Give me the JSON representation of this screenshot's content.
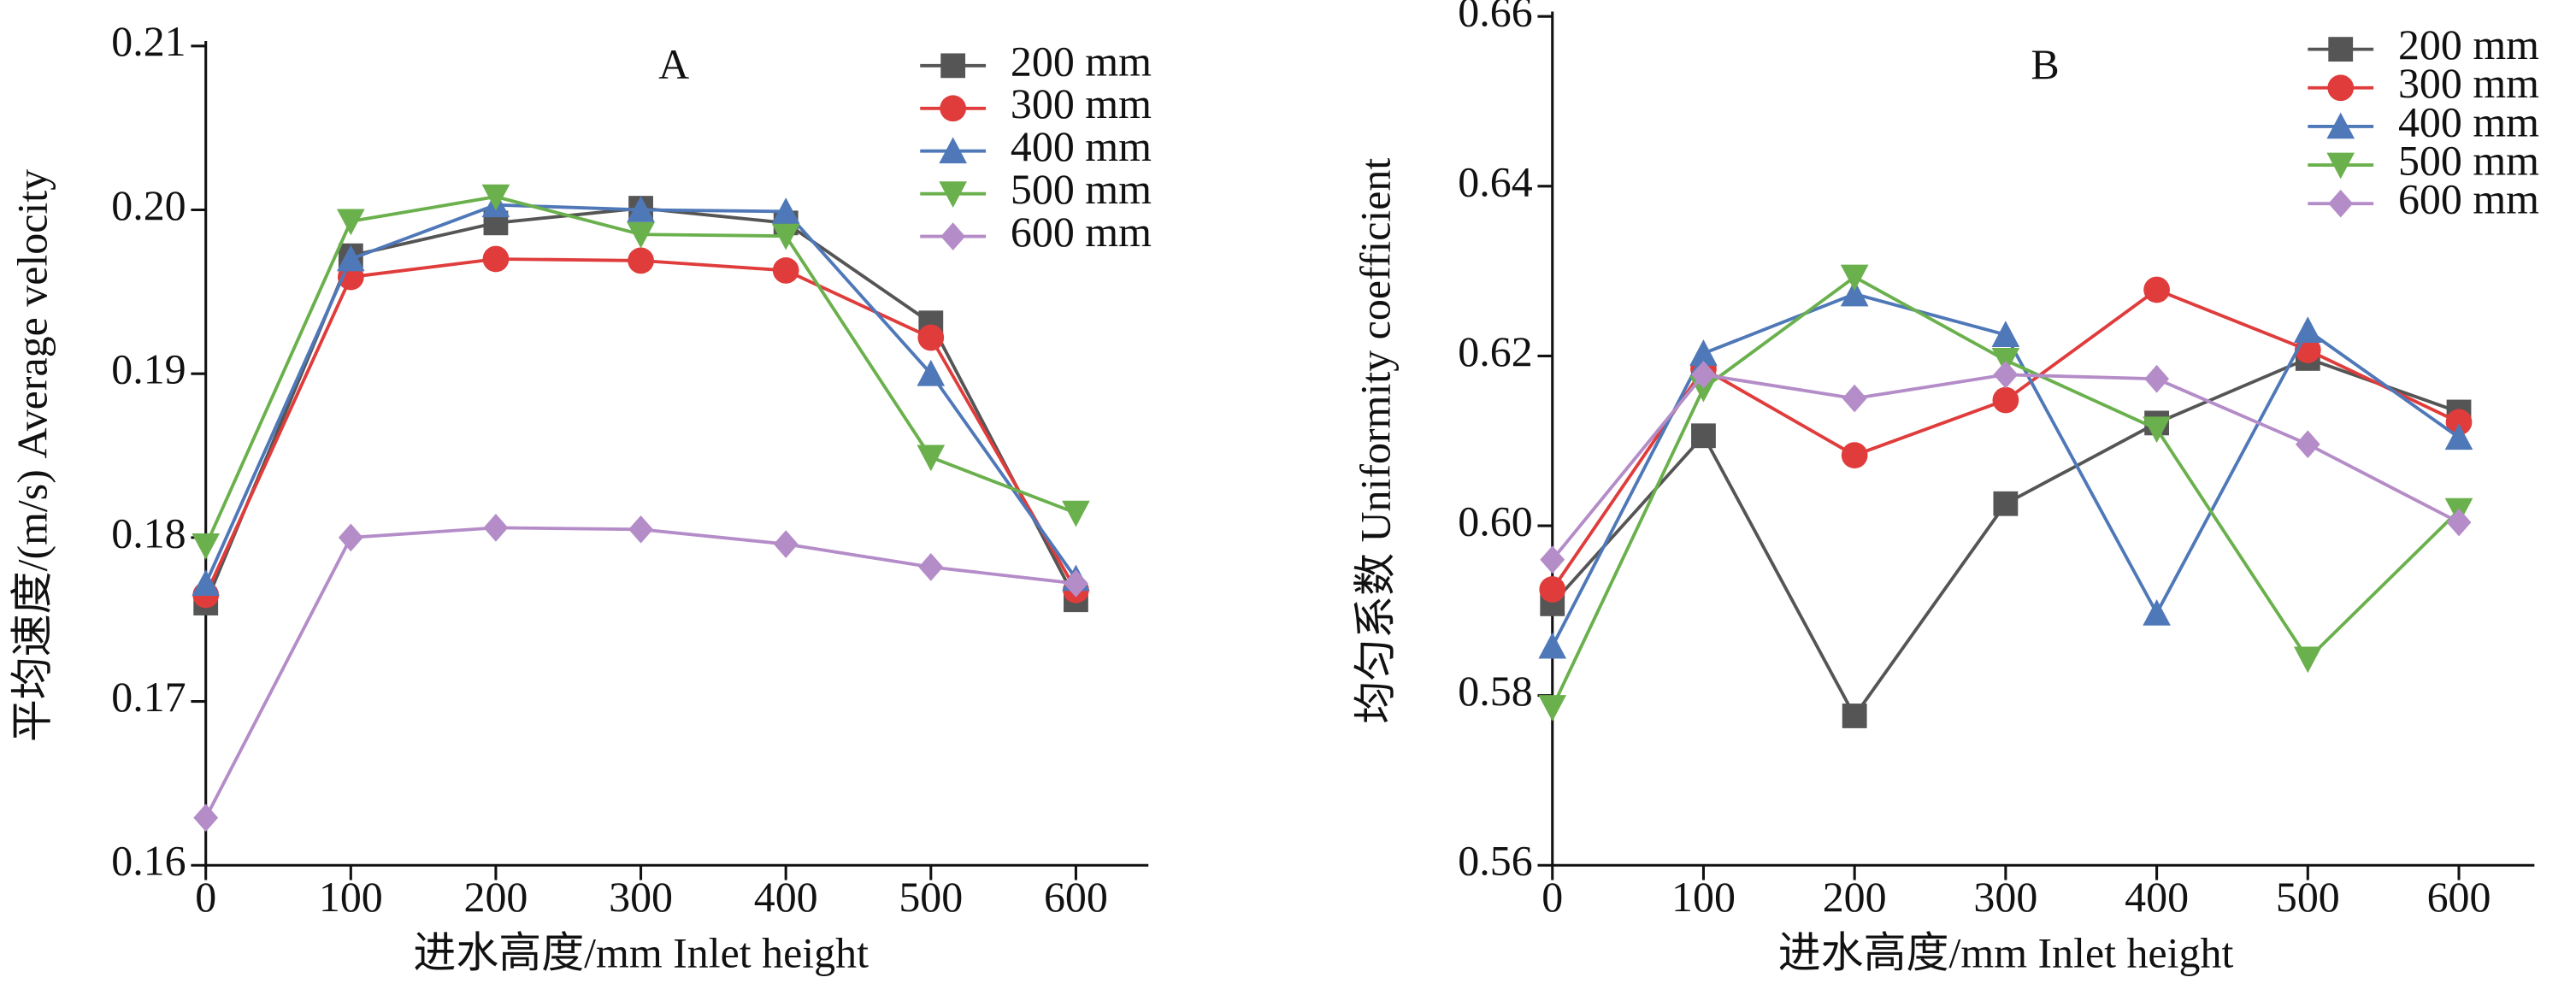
{
  "chart_data": [
    {
      "type": "line",
      "title": "A",
      "xlabel": "进水高度/mm Inlet height",
      "ylabel": "平均速度/(m/s)  Average velocity",
      "x": [
        0,
        100,
        200,
        300,
        400,
        500,
        600
      ],
      "xlim": [
        0,
        650
      ],
      "xticks": [
        0,
        100,
        200,
        300,
        400,
        500,
        600
      ],
      "ylim": [
        0.16,
        0.21
      ],
      "yticks": [
        0.16,
        0.17,
        0.18,
        0.19,
        {
          "value": 0.2,
          "label": "0.20"
        },
        0.21
      ],
      "legend": "upper right",
      "series": [
        {
          "name": "200 mm",
          "color": "#555555",
          "marker": "square",
          "values": [
            0.176,
            0.1972,
            0.1992,
            0.2001,
            0.1992,
            0.1931,
            0.1762
          ]
        },
        {
          "name": "300 mm",
          "color": "#e03c3c",
          "marker": "circle",
          "values": [
            0.1765,
            0.1959,
            0.197,
            0.1969,
            0.1963,
            0.1922,
            0.1768
          ]
        },
        {
          "name": "400 mm",
          "color": "#4f78b8",
          "marker": "triangle-up",
          "values": [
            0.1772,
            0.197,
            0.2003,
            0.2,
            0.1999,
            0.19,
            0.1775
          ]
        },
        {
          "name": "500 mm",
          "color": "#6ab04c",
          "marker": "triangle-down",
          "values": [
            0.1795,
            0.1993,
            0.2008,
            0.1985,
            0.1984,
            0.1849,
            0.1815
          ]
        },
        {
          "name": "600 mm",
          "color": "#b48cc8",
          "marker": "diamond",
          "values": [
            0.1629,
            0.18,
            0.1806,
            0.1805,
            0.1796,
            0.1782,
            0.1772
          ]
        }
      ]
    },
    {
      "type": "line",
      "title": "B",
      "xlabel": "进水高度/mm Inlet height",
      "ylabel": "均匀系数  Uniformity coefficient",
      "x": [
        0,
        100,
        200,
        300,
        400,
        500,
        600
      ],
      "xlim": [
        0,
        650
      ],
      "xticks": [
        0,
        100,
        200,
        300,
        400,
        500,
        600
      ],
      "ylim": [
        0.56,
        0.66
      ],
      "yticks": [
        0.56,
        0.58,
        {
          "value": 0.6,
          "label": "0.60"
        },
        0.62,
        0.64,
        0.66
      ],
      "legend": "upper right",
      "series": [
        {
          "name": "200 mm",
          "color": "#555555",
          "marker": "square",
          "values": [
            0.5908,
            0.6106,
            0.5776,
            0.6026,
            0.6121,
            0.6197,
            0.6134
          ]
        },
        {
          "name": "300 mm",
          "color": "#e03c3c",
          "marker": "circle",
          "values": [
            0.5925,
            0.6185,
            0.6083,
            0.6148,
            0.6278,
            0.6207,
            0.6122
          ]
        },
        {
          "name": "400 mm",
          "color": "#4f78b8",
          "marker": "triangle-up",
          "values": [
            0.5858,
            0.6203,
            0.6273,
            0.6225,
            0.5897,
            0.623,
            0.6104
          ]
        },
        {
          "name": "500 mm",
          "color": "#6ab04c",
          "marker": "triangle-down",
          "values": [
            0.5786,
            0.6162,
            0.6293,
            0.6195,
            0.6114,
            0.5843,
            0.6018
          ]
        },
        {
          "name": "600 mm",
          "color": "#b48cc8",
          "marker": "diamond",
          "values": [
            0.596,
            0.6178,
            0.615,
            0.6178,
            0.6173,
            0.6096,
            0.6004
          ]
        }
      ]
    }
  ]
}
